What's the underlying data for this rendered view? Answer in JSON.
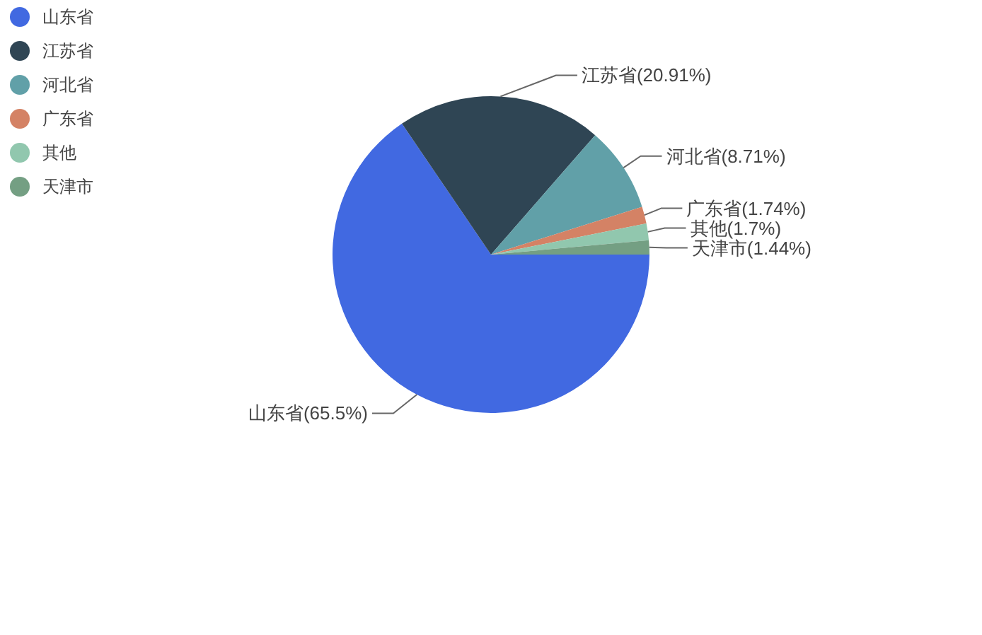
{
  "chart_data": {
    "type": "pie",
    "categories": [
      "山东省",
      "江苏省",
      "河北省",
      "广东省",
      "其他",
      "天津市"
    ],
    "values": [
      65.5,
      20.91,
      8.71,
      1.74,
      1.7,
      1.44
    ],
    "colors": [
      "#4169e1",
      "#2f4554",
      "#61a0a8",
      "#d48265",
      "#91c7ae",
      "#749f83"
    ],
    "value_labels": [
      "山东省(65.5%)",
      "江苏省(20.91%)",
      "河北省(8.71%)",
      "广东省(1.74%)",
      "其他(1.7%)",
      "天津市(1.44%)"
    ],
    "legend": "top left"
  }
}
